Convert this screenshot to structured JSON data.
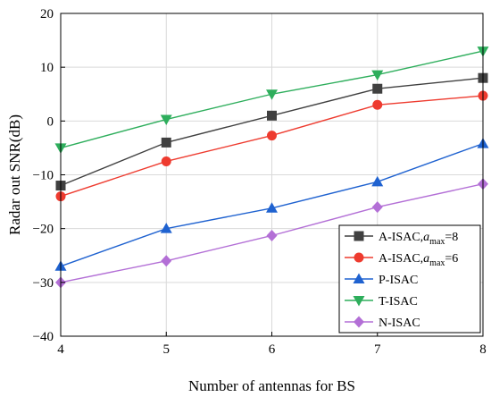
{
  "chart_data": {
    "type": "line",
    "title": "",
    "xlabel": "Number of antennas for BS",
    "ylabel": "Radar out SNR(dB)",
    "xlim": [
      4,
      8
    ],
    "ylim": [
      -40,
      20
    ],
    "xticks": [
      "4",
      "5",
      "6",
      "7",
      "8"
    ],
    "yticks": [
      "20",
      "10",
      "0",
      "−10",
      "−20",
      "−30",
      "−40"
    ],
    "grid": true,
    "legend_position": "bottom-right",
    "x": [
      4,
      5,
      6,
      7,
      8
    ],
    "series": [
      {
        "name_prefix": "A-ISAC,",
        "name_var": "a",
        "name_sub": "max",
        "name_suffix": "=8",
        "values": [
          -12,
          -4,
          1,
          6,
          8
        ],
        "color": "#404040",
        "marker": "square"
      },
      {
        "name_prefix": "A-ISAC,",
        "name_var": "a",
        "name_sub": "max",
        "name_suffix": "=6",
        "values": [
          -14,
          -7.5,
          -2.7,
          3,
          4.7
        ],
        "color": "#ee3b2f",
        "marker": "circle"
      },
      {
        "name_prefix": "P-ISAC",
        "values": [
          -27,
          -20,
          -16.2,
          -11.3,
          -4.2
        ],
        "color": "#1f62d0",
        "marker": "triangle-up"
      },
      {
        "name_prefix": "T-ISAC",
        "values": [
          -5,
          0.3,
          5,
          8.6,
          13
        ],
        "color": "#2eae5c",
        "marker": "triangle-down"
      },
      {
        "name_prefix": "N-ISAC",
        "values": [
          -30,
          -26,
          -21.3,
          -16,
          -11.7
        ],
        "color": "#b36fd6",
        "marker": "diamond"
      }
    ]
  }
}
